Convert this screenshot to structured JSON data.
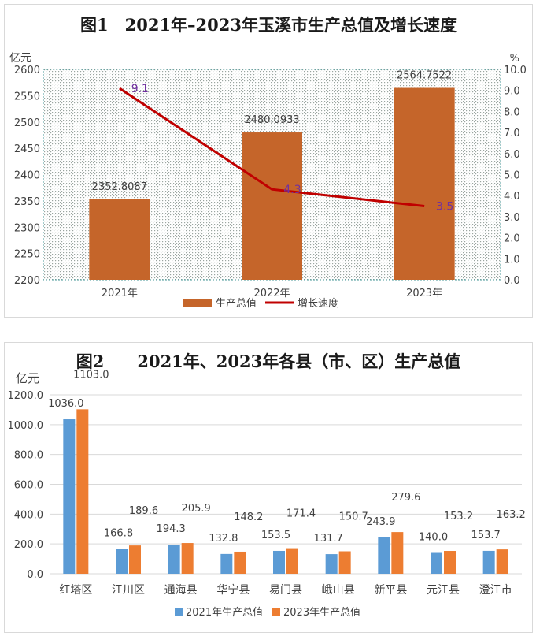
{
  "chart_data": [
    {
      "type": "bar+line",
      "title": "图1　2021年–2023年玉溪市生产总值及增长速度",
      "y_left_unit": "亿元",
      "y_right_unit": "%",
      "categories": [
        "2021年",
        "2022年",
        "2023年"
      ],
      "y_left_ticks": [
        "2200",
        "2250",
        "2300",
        "2350",
        "2400",
        "2450",
        "2500",
        "2550",
        "2600"
      ],
      "y_right_ticks": [
        "0.0",
        "1.0",
        "2.0",
        "3.0",
        "4.0",
        "5.0",
        "6.0",
        "7.0",
        "8.0",
        "9.0",
        "10.0"
      ],
      "ylim_left": [
        2200,
        2600
      ],
      "ylim_right": [
        0,
        10
      ],
      "series": [
        {
          "name": "生产总值",
          "kind": "bar",
          "axis": "left",
          "color": "#c5652a",
          "values": [
            2352.8087,
            2480.0933,
            2564.7522
          ],
          "labels": [
            "2352.8087",
            "2480.0933",
            "2564.7522"
          ]
        },
        {
          "name": "增长速度",
          "kind": "line",
          "axis": "right",
          "color": "#c00000",
          "values": [
            9.1,
            4.3,
            3.5
          ],
          "labels": [
            "9.1",
            "4.3",
            "3.5"
          ]
        }
      ],
      "legend_position": "bottom",
      "plot_background": "dotted"
    },
    {
      "type": "bar",
      "title": "图2　　2021年、2023年各县（市、区）生产总值",
      "y_unit": "亿元",
      "categories": [
        "红塔区",
        "江川区",
        "通海县",
        "华宁县",
        "易门县",
        "峨山县",
        "新平县",
        "元江县",
        "澄江市"
      ],
      "y_ticks": [
        "0.0",
        "200.0",
        "400.0",
        "600.0",
        "800.0",
        "1000.0",
        "1200.0"
      ],
      "ylim": [
        0,
        1200
      ],
      "series": [
        {
          "name": "2021年生产总值",
          "color": "#5b9bd5",
          "values": [
            1036.0,
            166.8,
            194.3,
            132.8,
            153.5,
            131.7,
            243.9,
            140.0,
            153.7
          ],
          "labels": [
            "1036.0",
            "166.8",
            "194.3",
            "132.8",
            "153.5",
            "131.7",
            "243.9",
            "140.0",
            "153.7"
          ]
        },
        {
          "name": "2023年生产总值",
          "color": "#ed7d31",
          "values": [
            1103.0,
            189.6,
            205.9,
            148.2,
            171.4,
            150.7,
            279.6,
            153.2,
            163.2
          ],
          "labels": [
            "1103.0",
            "189.6",
            "205.9",
            "148.2",
            "171.4",
            "150.7",
            "279.6",
            "153.2",
            "163.2"
          ]
        }
      ],
      "legend_position": "bottom",
      "grid": true
    }
  ]
}
